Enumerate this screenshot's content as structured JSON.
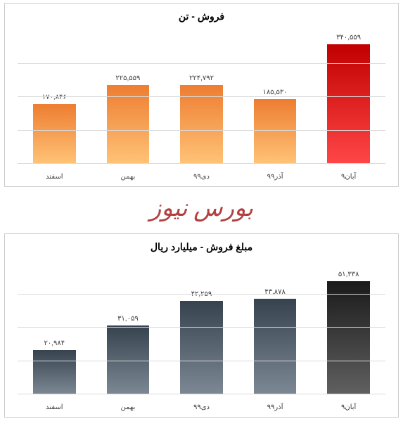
{
  "chart1": {
    "type": "bar",
    "title": "فروش - تن",
    "title_fontsize": 14,
    "title_color": "#000000",
    "background_color": "#ffffff",
    "grid_color": "#d9d9d9",
    "border_color": "#cccccc",
    "label_fontsize": 10,
    "label_color": "#404040",
    "ylim": [
      0,
      380
    ],
    "gridlines": [
      0,
      95,
      190,
      285
    ],
    "bar_width": 0.58,
    "categories": [
      "اسفند",
      "بهمن",
      "دی۹۹",
      "آذر۹۹",
      "آبان۹"
    ],
    "values": [
      170,
      225,
      225,
      185,
      340
    ],
    "value_labels": [
      "۱۷۰,۸۴۶",
      "۲۲۵,۵۵۹",
      "۲۲۴,۷۹۲",
      "۱۸۵,۵۳۰",
      "۳۴۰,۵۵۹"
    ],
    "bar_colors": [
      "#ed7d31",
      "#ed7d31",
      "#ed7d31",
      "#ed7d31",
      "#c00000"
    ],
    "bar_gradient": true
  },
  "chart2": {
    "type": "bar",
    "title": "مبلغ فروش - میلیارد ریال",
    "title_fontsize": 14,
    "title_color": "#000000",
    "background_color": "#ffffff",
    "grid_color": "#d9d9d9",
    "border_color": "#cccccc",
    "label_fontsize": 10,
    "label_color": "#404040",
    "ylim": [
      0,
      60
    ],
    "gridlines": [
      0,
      15,
      30,
      45
    ],
    "bar_width": 0.58,
    "categories": [
      "اسفند",
      "بهمن",
      "دی۹۹",
      "آذر۹۹",
      "آبان۹"
    ],
    "values": [
      20,
      31,
      42,
      43,
      51
    ],
    "value_labels": [
      "۲۰,۹۸۴",
      "۳۱,۰۵۹",
      "۴۲,۲۵۹",
      "۴۳,۸۷۸",
      "۵۱,۳۳۸"
    ],
    "bar_colors": [
      "#37424f",
      "#37424f",
      "#37424f",
      "#37424f",
      "#1a1a1a"
    ],
    "bar_gradient": true
  },
  "watermark": {
    "text": "بورس نیوز",
    "color": "rgba(153,0,0,0.75)",
    "fontsize": 34
  }
}
